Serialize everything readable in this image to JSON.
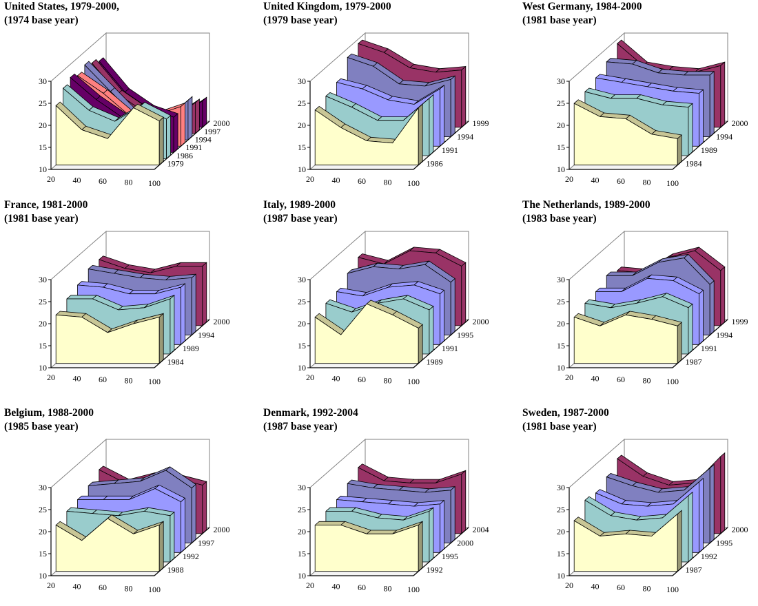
{
  "palette": {
    "front_fill": "#ffffcc",
    "front_top": "#c8c696",
    "front_side": "#999977",
    "ribbon_fills": [
      "#ccffff",
      "#99cccc",
      "#9999ff",
      "#8080c0",
      "#993366",
      "#660066"
    ],
    "us_ribbon_fills": [
      "#ccffff",
      "#99cccc",
      "#660066",
      "#ff8080",
      "#8080c0",
      "#993366",
      "#660066"
    ],
    "wall": "#ffffff",
    "axis": "#000000",
    "grid_line": "#808080"
  },
  "chart_data": [
    {
      "type": "area",
      "title": "United States, 1979-2000,",
      "subtitle": "(1974 base year)",
      "x_ticks": [
        "20",
        "40",
        "60",
        "80",
        "100"
      ],
      "y_ticks": [
        "10",
        "15",
        "20",
        "25",
        "30"
      ],
      "ylim": [
        10,
        30
      ],
      "series_ticks": [
        "1979",
        "1986",
        "1991",
        "1994",
        "1997",
        "2000"
      ],
      "series": [
        {
          "values": [
            23.5,
            18,
            16,
            23,
            20
          ]
        },
        {
          "values": [
            26,
            21,
            18.5,
            22,
            19
          ]
        },
        {
          "values": [
            27,
            22,
            18,
            20,
            18
          ]
        },
        {
          "values": [
            26,
            22,
            17,
            17,
            19
          ]
        },
        {
          "values": [
            27,
            21,
            15,
            14,
            19
          ]
        },
        {
          "values": [
            26,
            19,
            15,
            13,
            17
          ]
        },
        {
          "values": [
            25,
            18,
            14,
            12,
            16
          ]
        }
      ]
    },
    {
      "type": "area",
      "title": "United Kingdom, 1979-2000",
      "subtitle": "(1979 base year)",
      "x_ticks": [
        "20",
        "40",
        "60",
        "80",
        "100"
      ],
      "y_ticks": [
        "10",
        "15",
        "20",
        "25",
        "30"
      ],
      "ylim": [
        10,
        30
      ],
      "series_ticks": [
        "1986",
        "1991",
        "1994",
        "1999"
      ],
      "series": [
        {
          "values": [
            22.5,
            18.5,
            15.5,
            15,
            23
          ]
        },
        {
          "values": [
            23.5,
            21,
            18,
            18,
            23
          ]
        },
        {
          "values": [
            24.5,
            23,
            20.5,
            19.5,
            23
          ]
        },
        {
          "values": [
            28,
            26,
            22,
            21.5,
            23
          ]
        },
        {
          "values": [
            29,
            27,
            23.5,
            22.5,
            23
          ]
        }
      ]
    },
    {
      "type": "area",
      "title": "West Germany, 1984-2000",
      "subtitle": "(1981 base year)",
      "x_ticks": [
        "20",
        "40",
        "60",
        "80",
        "100"
      ],
      "y_ticks": [
        "10",
        "15",
        "20",
        "25",
        "30"
      ],
      "ylim": [
        10,
        30
      ],
      "series_ticks": [
        "1984",
        "1989",
        "1994",
        "2000"
      ],
      "series": [
        {
          "values": [
            24,
            21,
            20.5,
            17,
            16
          ]
        },
        {
          "values": [
            24.5,
            23,
            23,
            21.5,
            21
          ]
        },
        {
          "values": [
            25.5,
            24.5,
            23.5,
            22.5,
            22
          ]
        },
        {
          "values": [
            27,
            26.5,
            24.5,
            24,
            24
          ]
        },
        {
          "values": [
            29,
            24,
            23,
            22.5,
            24
          ]
        }
      ]
    },
    {
      "type": "area",
      "title": "France, 1981-2000",
      "subtitle": "(1981 base year)",
      "x_ticks": [
        "20",
        "40",
        "60",
        "80",
        "100"
      ],
      "y_ticks": [
        "10",
        "15",
        "20",
        "25",
        "30"
      ],
      "ylim": [
        10,
        30
      ],
      "series_ticks": [
        "1984",
        "1989",
        "1994",
        "2000"
      ],
      "series": [
        {
          "values": [
            21,
            20.5,
            17,
            19,
            20.5
          ]
        },
        {
          "values": [
            22.5,
            22.5,
            20,
            20.5,
            22.5
          ]
        },
        {
          "values": [
            23.5,
            23,
            21.5,
            21.5,
            23
          ]
        },
        {
          "values": [
            25,
            24,
            23,
            22.5,
            23
          ]
        },
        {
          "values": [
            25,
            23,
            22,
            23.5,
            23.5
          ]
        }
      ]
    },
    {
      "type": "area",
      "title": "Italy, 1989-2000",
      "subtitle": "(1987 base year)",
      "x_ticks": [
        "20",
        "40",
        "60",
        "80",
        "100"
      ],
      "y_ticks": [
        "10",
        "15",
        "20",
        "25",
        "30"
      ],
      "ylim": [
        10,
        30
      ],
      "series_ticks": [
        "1989",
        "1991",
        "1995",
        "2000"
      ],
      "series": [
        {
          "values": [
            20.5,
            16.5,
            23.5,
            21,
            18
          ]
        },
        {
          "values": [
            21.5,
            19.5,
            21.5,
            22.5,
            20
          ]
        },
        {
          "values": [
            22,
            21,
            23,
            23.5,
            21.5
          ]
        },
        {
          "values": [
            24,
            25.5,
            25,
            26,
            22
          ]
        },
        {
          "values": [
            25.5,
            24,
            27,
            26.5,
            23.5
          ]
        }
      ]
    },
    {
      "type": "area",
      "title": "The Netherlands, 1989-2000",
      "subtitle": "(1983 base year)",
      "x_ticks": [
        "20",
        "40",
        "60",
        "80",
        "100"
      ],
      "y_ticks": [
        "10",
        "15",
        "20",
        "25",
        "30"
      ],
      "ylim": [
        10,
        30
      ],
      "series_ticks": [
        "1987",
        "1991",
        "1994",
        "1999"
      ],
      "series": [
        {
          "values": [
            20.5,
            18.5,
            21,
            20,
            18.5
          ]
        },
        {
          "values": [
            21.5,
            20.5,
            21.5,
            23,
            20.5
          ]
        },
        {
          "values": [
            22,
            22,
            25,
            24.5,
            21.5
          ]
        },
        {
          "values": [
            23.5,
            23.5,
            26.5,
            27.5,
            21.5
          ]
        },
        {
          "values": [
            22.5,
            22,
            25.5,
            27,
            22.5
          ]
        }
      ]
    },
    {
      "type": "area",
      "title": "Belgium, 1988-2000",
      "subtitle": "(1985 base year)",
      "x_ticks": [
        "20",
        "40",
        "60",
        "80",
        "100"
      ],
      "y_ticks": [
        "10",
        "15",
        "20",
        "25",
        "30"
      ],
      "ylim": [
        10,
        30
      ],
      "series_ticks": [
        "1988",
        "1992",
        "1997",
        "2000"
      ],
      "series": [
        {
          "values": [
            20.5,
            17,
            22,
            18.5,
            20.5
          ]
        },
        {
          "values": [
            21.5,
            21,
            20.5,
            21.5,
            20.5
          ]
        },
        {
          "values": [
            22,
            22,
            22,
            24.5,
            21.5
          ]
        },
        {
          "values": [
            23,
            23.5,
            24,
            26.5,
            22.5
          ]
        },
        {
          "values": [
            24.5,
            21.5,
            23,
            22.5,
            21
          ]
        }
      ]
    },
    {
      "type": "area",
      "title": "Denmark, 1992-2004",
      "subtitle": "(1987 base year)",
      "x_ticks": [
        "20",
        "40",
        "60",
        "80",
        "100"
      ],
      "y_ticks": [
        "10",
        "15",
        "20",
        "25",
        "30"
      ],
      "ylim": [
        10,
        30
      ],
      "series_ticks": [
        "1992",
        "1995",
        "2000",
        "2004"
      ],
      "series": [
        {
          "values": [
            20.5,
            20.5,
            18.5,
            18.5,
            20.5
          ]
        },
        {
          "values": [
            21.5,
            21.5,
            20,
            19.5,
            21.5
          ]
        },
        {
          "values": [
            22,
            21.5,
            21,
            20.5,
            21
          ]
        },
        {
          "values": [
            23.5,
            22.5,
            22,
            21.5,
            22
          ]
        },
        {
          "values": [
            25,
            22,
            21.5,
            21.5,
            23.5
          ]
        }
      ]
    },
    {
      "type": "area",
      "title": "Sweden, 1987-2000",
      "subtitle": "(1981 base year)",
      "x_ticks": [
        "20",
        "40",
        "60",
        "80",
        "100"
      ],
      "y_ticks": [
        "10",
        "15",
        "20",
        "25",
        "30"
      ],
      "ylim": [
        10,
        30
      ],
      "series_ticks": [
        "1987",
        "1992",
        "1995",
        "2000"
      ],
      "series": [
        {
          "values": [
            21.5,
            18,
            18.5,
            18,
            23
          ]
        },
        {
          "values": [
            24,
            20.5,
            19.5,
            20,
            25
          ]
        },
        {
          "values": [
            23.5,
            21,
            20.5,
            21,
            26
          ]
        },
        {
          "values": [
            25,
            23,
            21.5,
            22,
            27
          ]
        },
        {
          "values": [
            27,
            23,
            21,
            21.5,
            27.5
          ]
        }
      ]
    }
  ]
}
